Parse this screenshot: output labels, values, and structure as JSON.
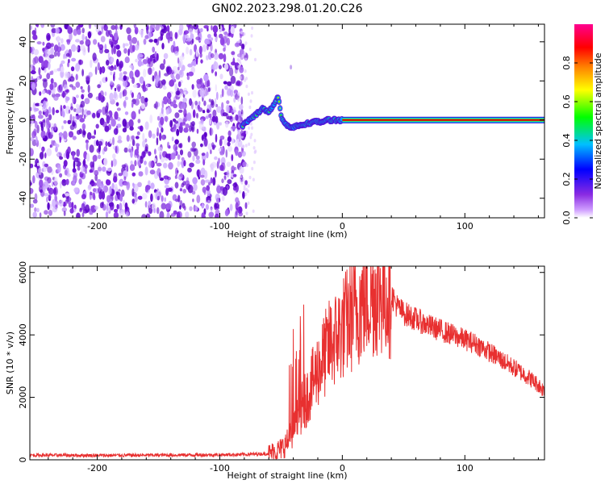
{
  "title": "GN02.2023.298.01.20.C26",
  "chart_data": [
    {
      "type": "heatmap",
      "xlabel": "Height of straight line (km)",
      "ylabel": "Frequency (Hz)",
      "xlim": [
        -255,
        165
      ],
      "ylim": [
        -50,
        49
      ],
      "xticks": [
        -200,
        -100,
        0,
        100
      ],
      "yticks": [
        -40,
        -20,
        0,
        20,
        40
      ],
      "xtick_labels": [
        "-200",
        "-100",
        "0",
        "100"
      ],
      "ytick_labels": [
        "-40",
        "-20",
        "0",
        "20",
        "40"
      ],
      "noise_region_x": [
        -255,
        -85
      ],
      "signal_track": [
        {
          "x": -82,
          "y": -3
        },
        {
          "x": -76,
          "y": 0
        },
        {
          "x": -70,
          "y": 3
        },
        {
          "x": -65,
          "y": 6
        },
        {
          "x": -60,
          "y": 4
        },
        {
          "x": -56,
          "y": 8
        },
        {
          "x": -52,
          "y": 12
        },
        {
          "x": -50,
          "y": 2
        },
        {
          "x": -47,
          "y": -2
        },
        {
          "x": -42,
          "y": -4
        },
        {
          "x": -36,
          "y": -3
        },
        {
          "x": -30,
          "y": -2
        },
        {
          "x": -24,
          "y": -1
        },
        {
          "x": -18,
          "y": -1
        },
        {
          "x": -12,
          "y": 0
        },
        {
          "x": -6,
          "y": 0
        },
        {
          "x": 0,
          "y": 0
        },
        {
          "x": 165,
          "y": 0
        }
      ],
      "grid": false,
      "colorbar": {
        "label": "Normalized spectral amplitude",
        "ticks": [
          0.0,
          0.2,
          0.4,
          0.6,
          0.8
        ],
        "tick_labels": [
          "0.0",
          "0.2",
          "0.4",
          "0.6",
          "0.8"
        ],
        "range": [
          0,
          1
        ],
        "colors": [
          "#ffffff",
          "#8a2be2",
          "#0000ff",
          "#00c0ff",
          "#00ff00",
          "#ffff00",
          "#ff8000",
          "#ff0000",
          "#ff0090"
        ]
      }
    },
    {
      "type": "line",
      "xlabel": "Height of straight line (km)",
      "ylabel": "SNR (10 * v/v)",
      "xlim": [
        -255,
        165
      ],
      "ylim": [
        0,
        6200
      ],
      "xticks": [
        -200,
        -100,
        0,
        100
      ],
      "yticks": [
        0,
        2000,
        4000,
        6000
      ],
      "xtick_labels": [
        "-200",
        "-100",
        "0",
        "100"
      ],
      "ytick_labels": [
        "0",
        "2000",
        "4000",
        "6000"
      ],
      "grid": false,
      "series": [
        {
          "color": "#e83030",
          "x": [
            -255,
            -200,
            -150,
            -100,
            -80,
            -60,
            -50,
            -45,
            -40,
            -35,
            -30,
            -25,
            -20,
            -15,
            -10,
            -5,
            0,
            5,
            10,
            15,
            20,
            25,
            30,
            35,
            40,
            45,
            50,
            55,
            60,
            70,
            80,
            90,
            100,
            110,
            120,
            130,
            140,
            150,
            160,
            165
          ],
          "y": [
            150,
            140,
            150,
            160,
            170,
            200,
            350,
            550,
            900,
            1500,
            1900,
            2400,
            2900,
            3300,
            3700,
            3900,
            4200,
            4500,
            4700,
            5000,
            5200,
            5300,
            5400,
            5350,
            5300,
            4900,
            4700,
            4600,
            4500,
            4300,
            4150,
            4000,
            3850,
            3700,
            3450,
            3200,
            2950,
            2700,
            2400,
            2200
          ]
        }
      ]
    }
  ]
}
